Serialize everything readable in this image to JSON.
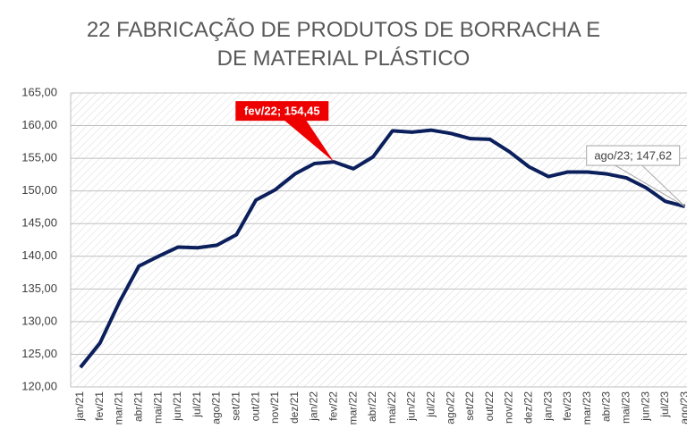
{
  "chart_data": {
    "type": "line",
    "title": "22 FABRICAÇÃO DE PRODUTOS DE BORRACHA E DE MATERIAL PLÁSTICO",
    "categories": [
      "jan/21",
      "fev/21",
      "mar/21",
      "abr/21",
      "mai/21",
      "jun/21",
      "jul/21",
      "ago/21",
      "set/21",
      "out/21",
      "nov/21",
      "dez/21",
      "jan/22",
      "fev/22",
      "mar/22",
      "abr/22",
      "mai/22",
      "jun/22",
      "jul/22",
      "ago/22",
      "set/22",
      "out/22",
      "nov/22",
      "dez/22",
      "jan/23",
      "fev/23",
      "mar/23",
      "abr/23",
      "mai/23",
      "jun/23",
      "jul/23",
      "ago/23"
    ],
    "values": [
      123.0,
      126.7,
      133.0,
      138.5,
      140.0,
      141.4,
      141.3,
      141.7,
      143.3,
      148.6,
      150.2,
      152.6,
      154.2,
      154.45,
      153.4,
      155.2,
      159.2,
      159.0,
      159.3,
      158.8,
      158.0,
      157.9,
      156.0,
      153.7,
      152.2,
      152.9,
      152.9,
      152.6,
      152.0,
      150.5,
      148.4,
      147.62
    ],
    "value_labels": [
      null,
      null,
      null,
      null,
      null,
      null,
      null,
      null,
      null,
      null,
      null,
      null,
      null,
      "fev/22; 154,45",
      null,
      null,
      null,
      null,
      null,
      null,
      null,
      null,
      null,
      null,
      null,
      null,
      null,
      null,
      null,
      null,
      null,
      "ago/23; 147,62"
    ],
    "color": "#0b1f5c",
    "ylim": [
      120,
      165
    ],
    "yticks": [
      {
        "value": 120,
        "label": "120,00"
      },
      {
        "value": 125,
        "label": "125,00"
      },
      {
        "value": 130,
        "label": "130,00"
      },
      {
        "value": 135,
        "label": "135,00"
      },
      {
        "value": 140,
        "label": "140,00"
      },
      {
        "value": 145,
        "label": "145,00"
      },
      {
        "value": 150,
        "label": "150,00"
      },
      {
        "value": 155,
        "label": "155,00"
      },
      {
        "value": 160,
        "label": "160,00"
      },
      {
        "value": 165,
        "label": "165,00"
      }
    ],
    "grid": true
  }
}
